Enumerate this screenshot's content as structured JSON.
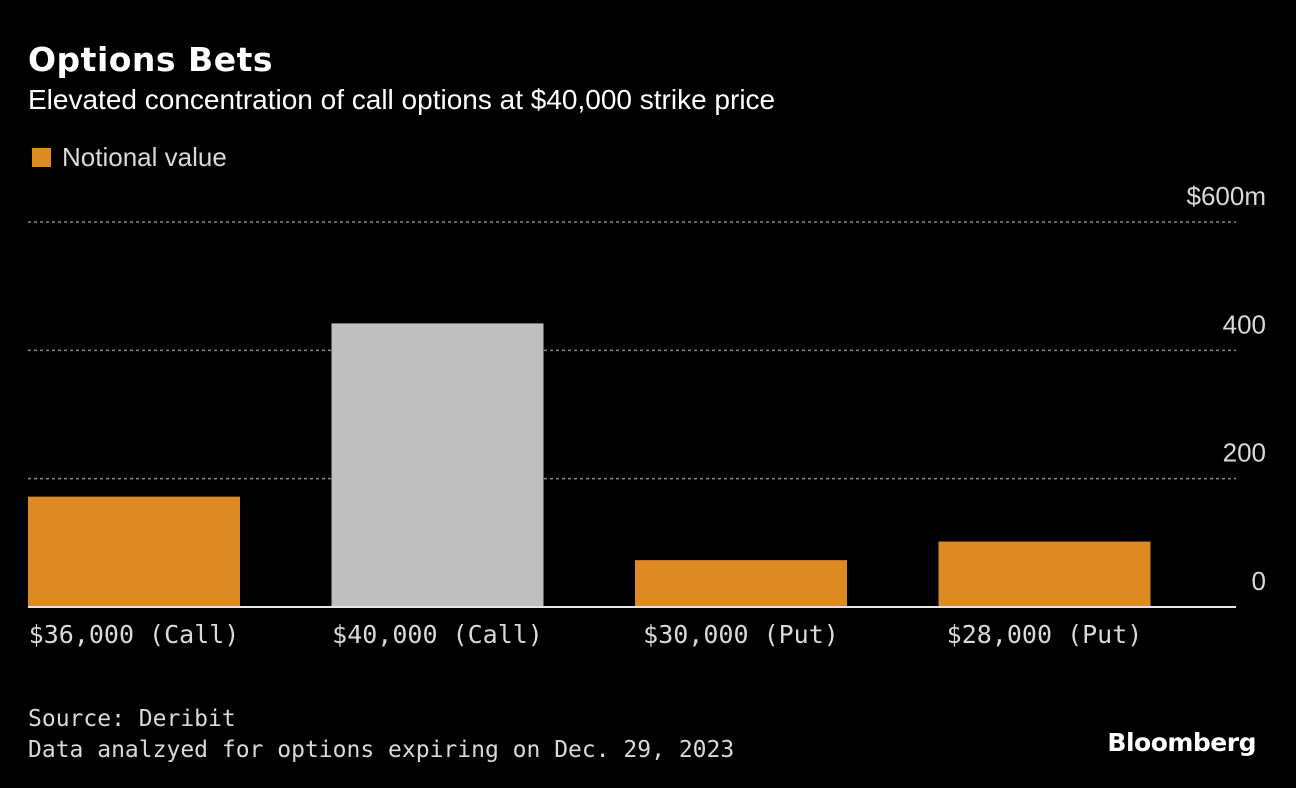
{
  "header": {
    "title": "Options Bets",
    "subtitle": "Elevated concentration of call options at $40,000 strike price"
  },
  "legend": {
    "label": "Notional value",
    "color": "#de8a23"
  },
  "colors": {
    "bar": "#de8a23",
    "highlight_bar": "#bfbfbf",
    "grid": "#8c8c8c",
    "axis_text": "#d9d9d9",
    "background": "#000000"
  },
  "chart_data": {
    "type": "bar",
    "categories": [
      "$36,000 (Call)",
      "$40,000 (Call)",
      "$30,000 (Put)",
      "$28,000 (Put)"
    ],
    "series": [
      {
        "name": "Notional value",
        "values": [
          172,
          442,
          73,
          102
        ]
      }
    ],
    "highlight_index": 1,
    "ylim": [
      0,
      600
    ],
    "yticks": [
      0,
      200,
      400,
      600
    ],
    "ytick_labels": [
      "0",
      "200",
      "400",
      "$600m"
    ],
    "grid": true,
    "legend_position": "top-left"
  },
  "footer": {
    "source": "Source: Deribit",
    "note": "Data analzyed for options expiring on Dec. 29, 2023",
    "brand": "Bloomberg"
  }
}
